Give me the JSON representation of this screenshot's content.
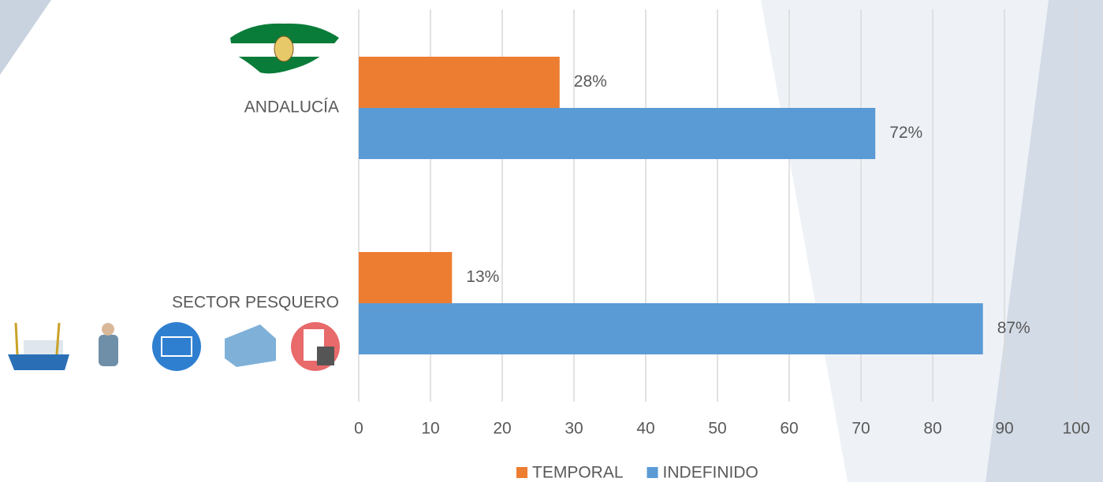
{
  "chart_data": {
    "type": "bar",
    "orientation": "horizontal",
    "categories": [
      "ANDALUCÍA",
      "SECTOR PESQUERO"
    ],
    "series": [
      {
        "name": "TEMPORAL",
        "color": "#ed7d31",
        "values": [
          28,
          13
        ],
        "value_labels": [
          "28%",
          "13%"
        ]
      },
      {
        "name": "INDEFINIDO",
        "color": "#5b9bd5",
        "values": [
          72,
          87
        ],
        "value_labels": [
          "72%",
          "87%"
        ]
      }
    ],
    "xlim": [
      0,
      100
    ],
    "xticks": [
      0,
      10,
      20,
      30,
      40,
      50,
      60,
      70,
      80,
      90,
      100
    ],
    "grid": true,
    "legend": "bottom"
  }
}
